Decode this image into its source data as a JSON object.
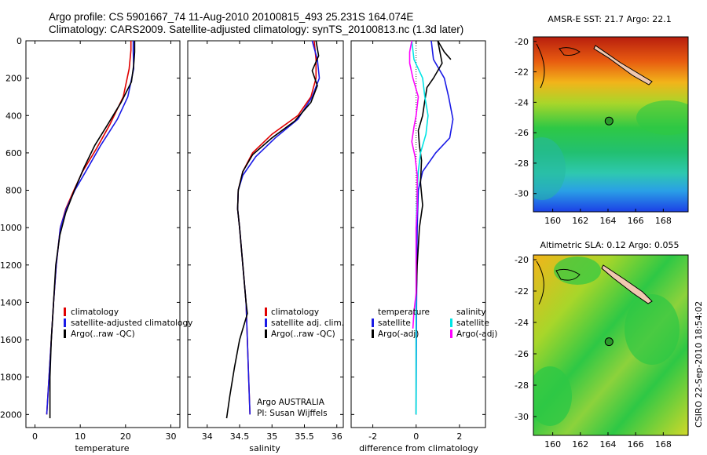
{
  "title": {
    "line1": "Argo profile: CS 5901667_74 11-Aug-2010 20100815_493 25.231S 164.074E",
    "line2": "Climatology: CARS2009. Satellite-adjusted climatology: synTS_20100813.nc (1.3d later)"
  },
  "credit": {
    "line1": "Argo AUSTRALIA",
    "line2": "PI: Susan Wijffels"
  },
  "timestamp": "CSIRO 22-Sep-2010 18:54:02",
  "colors": {
    "climatology": "#e00000",
    "satellite": "#1a1ae6",
    "argo": "#000000",
    "satellite_diff_salinity": "#00e5e5",
    "argo_diff_salinity": "#ff00ff",
    "marker": "#2a9a2a",
    "land": "#f0c8b0"
  },
  "chart_data": [
    {
      "type": "line",
      "id": "temperature",
      "xlabel": "temperature",
      "ylabel": "",
      "xlim": [
        -2,
        32
      ],
      "ylim": [
        2070,
        0
      ],
      "xticks": [
        0,
        10,
        20,
        30
      ],
      "yticks": [
        0,
        200,
        400,
        600,
        800,
        1000,
        1200,
        1400,
        1600,
        1800,
        2000
      ],
      "legend": [
        "climatology",
        "satellite-adjusted climatology",
        "Argo(..raw -QC)"
      ],
      "legend_position": "bottom-center",
      "series": [
        {
          "name": "climatology",
          "color": "#e00000",
          "points": [
            [
              21.2,
              0
            ],
            [
              21.2,
              50
            ],
            [
              20.8,
              150
            ],
            [
              19.5,
              300
            ],
            [
              16.5,
              450
            ],
            [
              13.5,
              580
            ],
            [
              10.5,
              700
            ],
            [
              8.6,
              800
            ],
            [
              6.8,
              900
            ],
            [
              5.6,
              1000
            ],
            [
              4.7,
              1200
            ],
            [
              4.1,
              1400
            ],
            [
              3.6,
              1600
            ],
            [
              3.1,
              1800
            ],
            [
              2.6,
              2000
            ]
          ]
        },
        {
          "name": "satellite-adjusted climatology",
          "color": "#1a1ae6",
          "points": [
            [
              21.7,
              0
            ],
            [
              21.7,
              60
            ],
            [
              21.8,
              150
            ],
            [
              20.5,
              300
            ],
            [
              18.2,
              420
            ],
            [
              14.5,
              560
            ],
            [
              11.2,
              700
            ],
            [
              8.8,
              800
            ],
            [
              6.9,
              900
            ],
            [
              5.6,
              1000
            ],
            [
              4.7,
              1200
            ],
            [
              4.1,
              1400
            ],
            [
              3.6,
              1600
            ],
            [
              3.1,
              1800
            ],
            [
              2.6,
              2000
            ]
          ]
        },
        {
          "name": "Argo(..raw -QC)",
          "color": "#000000",
          "points": [
            [
              22.0,
              0
            ],
            [
              22.0,
              60
            ],
            [
              21.8,
              130
            ],
            [
              21.3,
              220
            ],
            [
              19.0,
              330
            ],
            [
              16.0,
              450
            ],
            [
              13.2,
              560
            ],
            [
              10.8,
              680
            ],
            [
              8.7,
              800
            ],
            [
              6.8,
              920
            ],
            [
              5.5,
              1040
            ],
            [
              4.6,
              1200
            ],
            [
              4.1,
              1400
            ],
            [
              3.6,
              1600
            ],
            [
              3.3,
              1800
            ],
            [
              3.3,
              2020
            ]
          ]
        }
      ]
    },
    {
      "type": "line",
      "id": "salinity",
      "xlabel": "salinity",
      "ylabel": "",
      "xlim": [
        33.7,
        36.1
      ],
      "ylim": [
        2070,
        0
      ],
      "xticks": [
        34,
        34.5,
        35,
        35.5,
        36
      ],
      "yticks": [
        0,
        200,
        400,
        600,
        800,
        1000,
        1200,
        1400,
        1600,
        1800,
        2000
      ],
      "legend": [
        "climatology",
        "satellite adj. clim.",
        "Argo(..raw -QC)"
      ],
      "legend_position": "bottom-right",
      "series": [
        {
          "name": "climatology",
          "color": "#e00000",
          "points": [
            [
              35.65,
              0
            ],
            [
              35.68,
              100
            ],
            [
              35.68,
              200
            ],
            [
              35.6,
              300
            ],
            [
              35.4,
              400
            ],
            [
              35.0,
              500
            ],
            [
              34.7,
              600
            ],
            [
              34.55,
              700
            ],
            [
              34.48,
              800
            ],
            [
              34.47,
              900
            ],
            [
              34.5,
              1000
            ],
            [
              34.55,
              1200
            ],
            [
              34.6,
              1400
            ],
            [
              34.62,
              1600
            ],
            [
              34.64,
              1800
            ],
            [
              34.66,
              2000
            ]
          ]
        },
        {
          "name": "satellite adj. clim.",
          "color": "#1a1ae6",
          "points": [
            [
              35.62,
              0
            ],
            [
              35.7,
              100
            ],
            [
              35.73,
              200
            ],
            [
              35.62,
              300
            ],
            [
              35.4,
              420
            ],
            [
              35.05,
              520
            ],
            [
              34.75,
              620
            ],
            [
              34.55,
              720
            ],
            [
              34.48,
              800
            ],
            [
              34.47,
              900
            ],
            [
              34.5,
              1000
            ],
            [
              34.55,
              1200
            ],
            [
              34.6,
              1400
            ],
            [
              34.62,
              1600
            ],
            [
              34.64,
              1800
            ],
            [
              34.66,
              2000
            ]
          ]
        },
        {
          "name": "Argo(..raw -QC)",
          "color": "#000000",
          "points": [
            [
              35.68,
              0
            ],
            [
              35.72,
              80
            ],
            [
              35.62,
              160
            ],
            [
              35.7,
              240
            ],
            [
              35.6,
              330
            ],
            [
              35.35,
              430
            ],
            [
              35.0,
              520
            ],
            [
              34.7,
              610
            ],
            [
              34.55,
              700
            ],
            [
              34.48,
              800
            ],
            [
              34.47,
              900
            ],
            [
              34.5,
              1000
            ],
            [
              34.55,
              1200
            ],
            [
              34.6,
              1400
            ],
            [
              34.62,
              1460
            ],
            [
              34.5,
              1600
            ],
            [
              34.42,
              1750
            ],
            [
              34.35,
              1900
            ],
            [
              34.3,
              2020
            ]
          ]
        }
      ]
    },
    {
      "type": "line",
      "id": "difference",
      "xlabel": "difference from climatology",
      "ylabel": "",
      "xlim": [
        -3,
        3.2
      ],
      "ylim": [
        2070,
        0
      ],
      "xticks": [
        -2,
        0,
        2
      ],
      "yticks": [
        0,
        200,
        400,
        600,
        800,
        1000,
        1200,
        1400,
        1600,
        1800,
        2000
      ],
      "legend_columns": [
        {
          "header": "temperature",
          "items": [
            "satellite",
            "Argo(-adj)"
          ]
        },
        {
          "header": "salinity",
          "items": [
            "satellite",
            "Argo(-adj)"
          ]
        }
      ],
      "legend_position": "bottom-center",
      "series": [
        {
          "name": "temperature satellite",
          "color": "#1a1ae6",
          "points": [
            [
              0.7,
              0
            ],
            [
              0.8,
              100
            ],
            [
              1.3,
              200
            ],
            [
              1.5,
              300
            ],
            [
              1.7,
              420
            ],
            [
              1.55,
              520
            ],
            [
              0.9,
              600
            ],
            [
              0.3,
              700
            ],
            [
              0.1,
              800
            ],
            [
              0.05,
              1000
            ],
            [
              0.02,
              1400
            ],
            [
              0.0,
              2000
            ]
          ]
        },
        {
          "name": "temperature Argo(-adj)",
          "color": "#000000",
          "points": [
            [
              1.6,
              100
            ],
            [
              1.3,
              60
            ],
            [
              1.0,
              0
            ],
            [
              1.2,
              120
            ],
            [
              0.8,
              200
            ],
            [
              0.5,
              250
            ],
            [
              0.4,
              320
            ],
            [
              0.3,
              400
            ],
            [
              0.1,
              480
            ],
            [
              0.15,
              560
            ],
            [
              0.25,
              640
            ],
            [
              0.2,
              760
            ],
            [
              0.3,
              880
            ],
            [
              0.15,
              1000
            ],
            [
              0.05,
              1200
            ],
            [
              0.0,
              1400
            ],
            [
              0.0,
              2000
            ]
          ]
        },
        {
          "name": "salinity satellite",
          "color": "#00e5e5",
          "points": [
            [
              -0.2,
              0
            ],
            [
              -0.1,
              100
            ],
            [
              0.3,
              200
            ],
            [
              0.4,
              300
            ],
            [
              0.55,
              400
            ],
            [
              0.45,
              500
            ],
            [
              0.2,
              600
            ],
            [
              0.1,
              700
            ],
            [
              0.05,
              800
            ],
            [
              0.0,
              1000
            ],
            [
              0.0,
              2000
            ]
          ]
        },
        {
          "name": "salinity Argo(-adj)",
          "color": "#ff00ff",
          "points": [
            [
              -0.2,
              0
            ],
            [
              -0.3,
              60
            ],
            [
              -0.3,
              120
            ],
            [
              -0.15,
              200
            ],
            [
              0.1,
              300
            ],
            [
              0.0,
              400
            ],
            [
              -0.1,
              460
            ],
            [
              -0.2,
              540
            ],
            [
              -0.05,
              620
            ],
            [
              0.05,
              720
            ],
            [
              0.05,
              900
            ],
            [
              0.0,
              1000
            ],
            [
              0.0,
              1350
            ],
            [
              -0.1,
              1450
            ],
            [
              -0.15,
              1540
            ]
          ]
        }
      ]
    },
    {
      "type": "heatmap",
      "id": "sst-map",
      "title": "AMSR-E SST: 21.7 Argo: 22.1",
      "xlim": [
        158.6,
        169.8
      ],
      "ylim": [
        -31.2,
        -19.7
      ],
      "xticks": [
        160,
        162,
        164,
        166,
        168
      ],
      "yticks": [
        -20,
        -22,
        -24,
        -26,
        -28,
        -30
      ],
      "marker": [
        164.074,
        -25.231
      ]
    },
    {
      "type": "heatmap",
      "id": "sla-map",
      "title": "Altimetric SLA: 0.12 Argo: 0.055",
      "xlim": [
        158.6,
        169.8
      ],
      "ylim": [
        -31.2,
        -19.7
      ],
      "xticks": [
        160,
        162,
        164,
        166,
        168
      ],
      "yticks": [
        -20,
        -22,
        -24,
        -26,
        -28,
        -30
      ],
      "marker": [
        164.074,
        -25.231
      ]
    }
  ]
}
